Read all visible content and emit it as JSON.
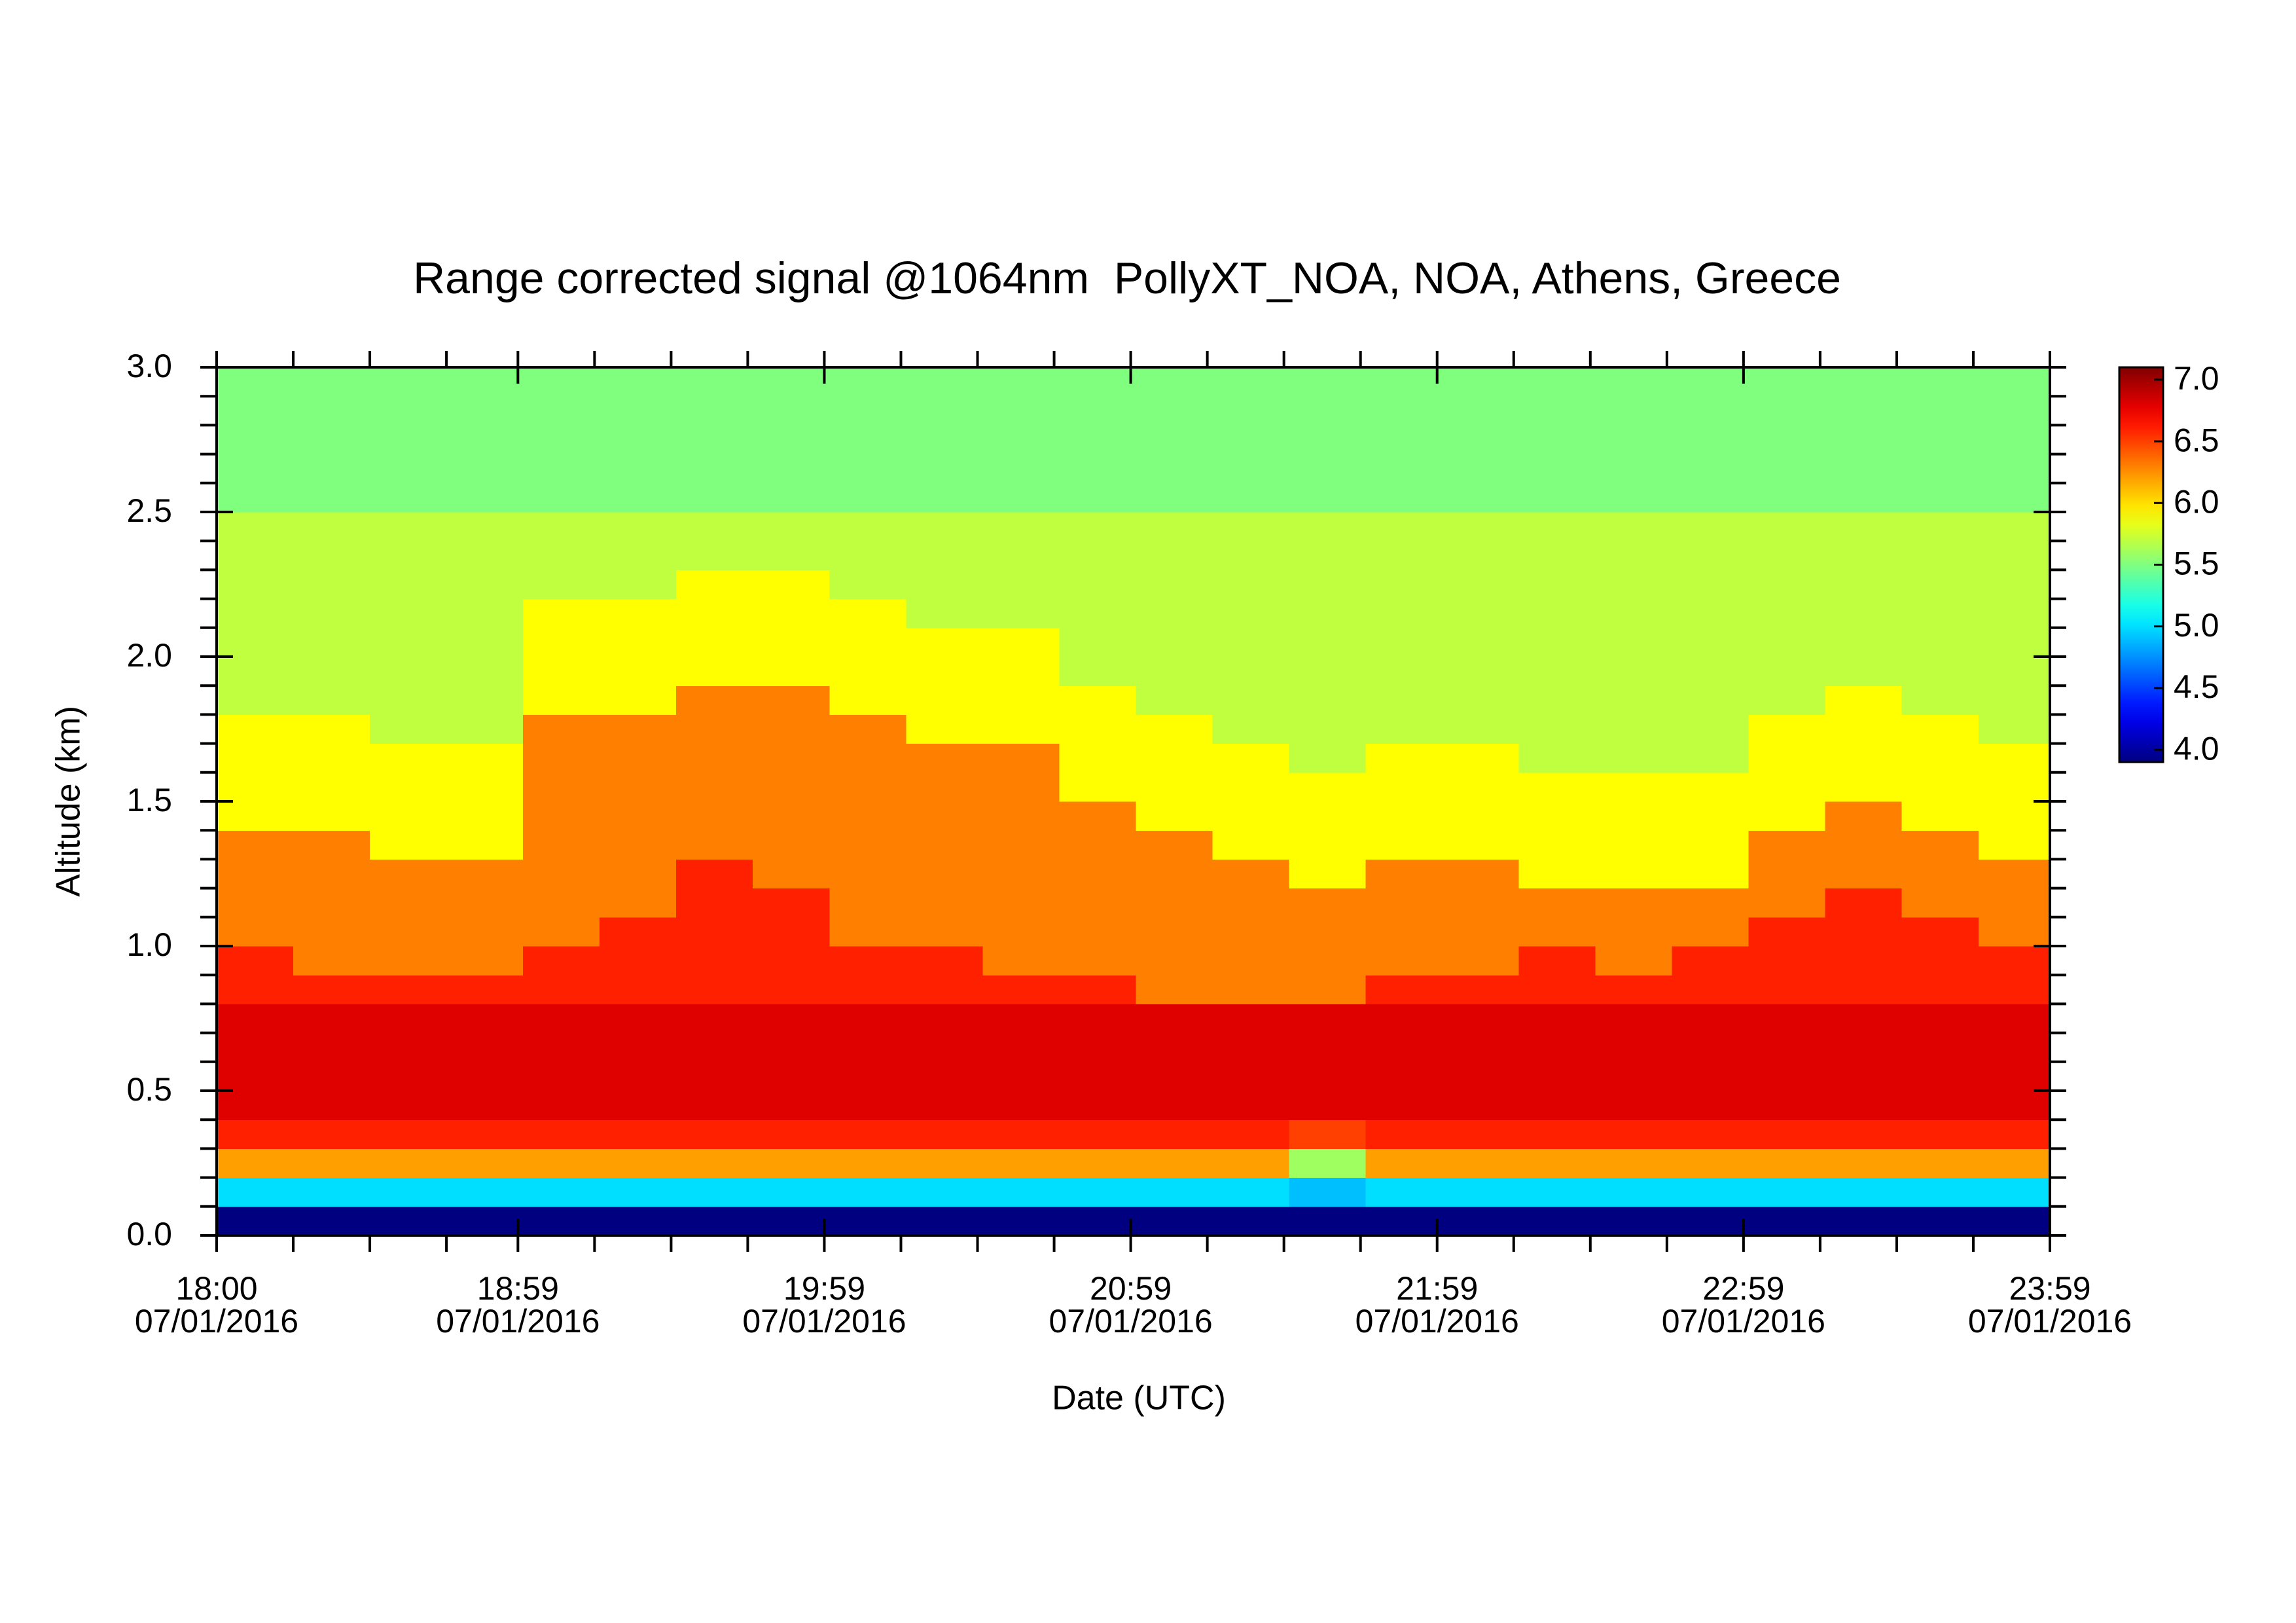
{
  "chart_data": {
    "type": "heatmap",
    "title": "Range corrected signal @1064nm  PollyXT_NOA, NOA, Athens, Greece",
    "xlabel": "Date (UTC)",
    "ylabel": "Altitude (km)",
    "colormap": "jet",
    "xlim": [
      0,
      359
    ],
    "xticks": [
      {
        "value": 0,
        "label": [
          "18:00",
          "07/01/2016"
        ]
      },
      {
        "value": 59,
        "label": [
          "18:59",
          "07/01/2016"
        ]
      },
      {
        "value": 119,
        "label": [
          "19:59",
          "07/01/2016"
        ]
      },
      {
        "value": 179,
        "label": [
          "20:59",
          "07/01/2016"
        ]
      },
      {
        "value": 239,
        "label": [
          "21:59",
          "07/01/2016"
        ]
      },
      {
        "value": 299,
        "label": [
          "22:59",
          "07/01/2016"
        ]
      },
      {
        "value": 359,
        "label": [
          "23:59",
          "07/01/2016"
        ]
      }
    ],
    "xminorticks": [
      15,
      30,
      45,
      74,
      89,
      104,
      134,
      149,
      164,
      194,
      209,
      224,
      254,
      269,
      284,
      314,
      329,
      344
    ],
    "ylim": [
      0,
      3
    ],
    "yticks": [
      {
        "value": 0,
        "label": "0.0"
      },
      0.5,
      {
        "value": 1,
        "label": "1.0"
      },
      1.5,
      {
        "value": 2,
        "label": "2.0"
      },
      2.5,
      {
        "value": 3,
        "label": "3.0"
      }
    ],
    "yminorticks": [
      0.1,
      0.2,
      0.3,
      0.4,
      0.6,
      0.7,
      0.8,
      0.9,
      1.1,
      1.2,
      1.3,
      1.4,
      1.6,
      1.7,
      1.8,
      1.9,
      2.1,
      2.2,
      2.3,
      2.4,
      2.6,
      2.7,
      2.8,
      2.9
    ],
    "clim": [
      3.9,
      7.1
    ],
    "cticks": [
      {
        "value": 4,
        "label": "4.0"
      },
      4.5,
      {
        "value": 5,
        "label": "5.0"
      },
      5.5,
      {
        "value": 6,
        "label": "6.0"
      },
      6.5,
      {
        "value": 7,
        "label": "7.0"
      }
    ],
    "x_edges": [
      0,
      15,
      30,
      45,
      60,
      75,
      90,
      105,
      120,
      135,
      150,
      165,
      180,
      195,
      210,
      225,
      240,
      255,
      270,
      285,
      300,
      315,
      330,
      345,
      359
    ],
    "y_edges": [
      0,
      0.1,
      0.2,
      0.3,
      0.4,
      0.5,
      0.6,
      0.7,
      0.8,
      0.9,
      1,
      1.1,
      1.2,
      1.3,
      1.4,
      1.5,
      1.6,
      1.7,
      1.8,
      1.9,
      2,
      2.1,
      2.2,
      2.3,
      2.4,
      2.5,
      2.6,
      2.7,
      2.8,
      2.9,
      3
    ],
    "z": [
      [
        3.9,
        5.0,
        6.2,
        6.6,
        6.8,
        6.8,
        6.8,
        6.8,
        6.6,
        6.6,
        6.3,
        6.3,
        6.3,
        6.3,
        5.9,
        5.9,
        5.9,
        5.9,
        5.7,
        5.7,
        5.7,
        5.7,
        5.7,
        5.7,
        5.7,
        5.5,
        5.5,
        5.5,
        5.5,
        5.5
      ],
      [
        3.9,
        5.0,
        6.2,
        6.6,
        6.8,
        6.8,
        6.8,
        6.8,
        6.6,
        6.3,
        6.3,
        6.3,
        6.3,
        6.3,
        5.9,
        5.9,
        5.9,
        5.9,
        5.7,
        5.7,
        5.7,
        5.7,
        5.7,
        5.7,
        5.7,
        5.5,
        5.5,
        5.5,
        5.5,
        5.5
      ],
      [
        3.9,
        5.0,
        6.2,
        6.6,
        6.8,
        6.8,
        6.8,
        6.8,
        6.6,
        6.3,
        6.3,
        6.3,
        6.3,
        5.9,
        5.9,
        5.9,
        5.9,
        5.7,
        5.7,
        5.7,
        5.7,
        5.7,
        5.7,
        5.7,
        5.7,
        5.5,
        5.5,
        5.5,
        5.5,
        5.5
      ],
      [
        3.9,
        5.0,
        6.2,
        6.6,
        6.8,
        6.8,
        6.8,
        6.8,
        6.6,
        6.3,
        6.3,
        6.3,
        6.3,
        5.9,
        5.9,
        5.9,
        5.9,
        5.7,
        5.7,
        5.7,
        5.7,
        5.7,
        5.7,
        5.7,
        5.7,
        5.5,
        5.5,
        5.5,
        5.5,
        5.5
      ],
      [
        3.9,
        5.0,
        6.2,
        6.6,
        6.8,
        6.8,
        6.8,
        6.8,
        6.6,
        6.6,
        6.3,
        6.3,
        6.3,
        6.3,
        6.3,
        6.3,
        6.3,
        6.3,
        5.9,
        5.9,
        5.9,
        5.9,
        5.7,
        5.7,
        5.7,
        5.5,
        5.5,
        5.5,
        5.5,
        5.5
      ],
      [
        3.9,
        5.0,
        6.2,
        6.6,
        6.8,
        6.8,
        6.8,
        6.8,
        6.6,
        6.6,
        6.6,
        6.3,
        6.3,
        6.3,
        6.3,
        6.3,
        6.3,
        6.3,
        5.9,
        5.9,
        5.9,
        5.9,
        5.7,
        5.7,
        5.7,
        5.5,
        5.5,
        5.5,
        5.5,
        5.5
      ],
      [
        3.9,
        5.0,
        6.2,
        6.6,
        6.8,
        6.8,
        6.8,
        6.8,
        6.6,
        6.6,
        6.6,
        6.6,
        6.6,
        6.3,
        6.3,
        6.3,
        6.3,
        6.3,
        6.3,
        5.9,
        5.9,
        5.9,
        5.9,
        5.7,
        5.7,
        5.5,
        5.5,
        5.5,
        5.5,
        5.5
      ],
      [
        3.9,
        5.0,
        6.2,
        6.6,
        6.8,
        6.8,
        6.8,
        6.8,
        6.6,
        6.6,
        6.6,
        6.6,
        6.3,
        6.3,
        6.3,
        6.3,
        6.3,
        6.3,
        6.3,
        5.9,
        5.9,
        5.9,
        5.9,
        5.7,
        5.7,
        5.5,
        5.5,
        5.5,
        5.5,
        5.5
      ],
      [
        3.9,
        5.0,
        6.2,
        6.6,
        6.8,
        6.8,
        6.8,
        6.8,
        6.6,
        6.6,
        6.3,
        6.3,
        6.3,
        6.3,
        6.3,
        6.3,
        6.3,
        6.3,
        5.9,
        5.9,
        5.9,
        5.9,
        5.7,
        5.7,
        5.7,
        5.5,
        5.5,
        5.5,
        5.5,
        5.5
      ],
      [
        3.9,
        5.0,
        6.2,
        6.6,
        6.8,
        6.8,
        6.8,
        6.8,
        6.6,
        6.6,
        6.3,
        6.3,
        6.3,
        6.3,
        6.3,
        6.3,
        6.3,
        5.9,
        5.9,
        5.9,
        5.9,
        5.7,
        5.7,
        5.7,
        5.7,
        5.5,
        5.5,
        5.5,
        5.5,
        5.5
      ],
      [
        3.9,
        5.0,
        6.2,
        6.6,
        6.8,
        6.8,
        6.8,
        6.8,
        6.6,
        6.3,
        6.3,
        6.3,
        6.3,
        6.3,
        6.3,
        6.3,
        6.3,
        5.9,
        5.9,
        5.9,
        5.9,
        5.7,
        5.7,
        5.7,
        5.7,
        5.5,
        5.5,
        5.5,
        5.5,
        5.5
      ],
      [
        3.9,
        5.0,
        6.2,
        6.6,
        6.8,
        6.8,
        6.8,
        6.8,
        6.6,
        6.3,
        6.3,
        6.3,
        6.3,
        6.3,
        6.3,
        5.9,
        5.9,
        5.9,
        5.9,
        5.7,
        5.7,
        5.7,
        5.7,
        5.7,
        5.7,
        5.5,
        5.5,
        5.5,
        5.5,
        5.5
      ],
      [
        3.9,
        5.0,
        6.2,
        6.6,
        6.8,
        6.8,
        6.8,
        6.8,
        6.3,
        6.3,
        6.3,
        6.3,
        6.3,
        6.3,
        5.9,
        5.9,
        5.9,
        5.9,
        5.7,
        5.7,
        5.7,
        5.7,
        5.7,
        5.7,
        5.7,
        5.5,
        5.5,
        5.5,
        5.5,
        5.5
      ],
      [
        3.9,
        5.0,
        6.2,
        6.6,
        6.8,
        6.8,
        6.8,
        6.8,
        6.3,
        6.3,
        6.3,
        6.3,
        6.3,
        5.9,
        5.9,
        5.9,
        5.9,
        5.7,
        5.7,
        5.7,
        5.7,
        5.7,
        5.7,
        5.7,
        5.7,
        5.5,
        5.5,
        5.5,
        5.5,
        5.5
      ],
      [
        3.9,
        4.9,
        5.6,
        6.5,
        6.8,
        6.8,
        6.8,
        6.8,
        6.3,
        6.3,
        6.3,
        6.3,
        5.9,
        5.9,
        5.9,
        5.9,
        5.7,
        5.7,
        5.7,
        5.7,
        5.7,
        5.7,
        5.7,
        5.7,
        5.7,
        5.5,
        5.5,
        5.5,
        5.5,
        5.5
      ],
      [
        3.9,
        5.0,
        6.2,
        6.6,
        6.8,
        6.8,
        6.8,
        6.8,
        6.6,
        6.3,
        6.3,
        6.3,
        6.3,
        5.9,
        5.9,
        5.9,
        5.9,
        5.7,
        5.7,
        5.7,
        5.7,
        5.7,
        5.7,
        5.7,
        5.7,
        5.5,
        5.5,
        5.5,
        5.5,
        5.5
      ],
      [
        3.9,
        5.0,
        6.2,
        6.6,
        6.8,
        6.8,
        6.8,
        6.8,
        6.6,
        6.3,
        6.3,
        6.3,
        6.3,
        5.9,
        5.9,
        5.9,
        5.9,
        5.7,
        5.7,
        5.7,
        5.7,
        5.7,
        5.7,
        5.7,
        5.7,
        5.5,
        5.5,
        5.5,
        5.5,
        5.5
      ],
      [
        3.9,
        5.0,
        6.2,
        6.6,
        6.8,
        6.8,
        6.8,
        6.8,
        6.6,
        6.6,
        6.3,
        6.3,
        5.9,
        5.9,
        5.9,
        5.9,
        5.7,
        5.7,
        5.7,
        5.7,
        5.7,
        5.7,
        5.7,
        5.7,
        5.7,
        5.5,
        5.5,
        5.5,
        5.5,
        5.5
      ],
      [
        3.9,
        5.0,
        6.2,
        6.6,
        6.8,
        6.8,
        6.8,
        6.8,
        6.6,
        6.3,
        6.3,
        6.3,
        5.9,
        5.9,
        5.9,
        5.9,
        5.7,
        5.7,
        5.7,
        5.7,
        5.7,
        5.7,
        5.7,
        5.7,
        5.7,
        5.5,
        5.5,
        5.5,
        5.5,
        5.5
      ],
      [
        3.9,
        5.0,
        6.2,
        6.6,
        6.8,
        6.8,
        6.8,
        6.8,
        6.6,
        6.6,
        6.3,
        6.3,
        5.9,
        5.9,
        5.9,
        5.9,
        5.7,
        5.7,
        5.7,
        5.7,
        5.7,
        5.7,
        5.7,
        5.7,
        5.7,
        5.5,
        5.5,
        5.5,
        5.5,
        5.5
      ],
      [
        3.9,
        5.0,
        6.2,
        6.6,
        6.8,
        6.8,
        6.8,
        6.8,
        6.6,
        6.6,
        6.6,
        6.3,
        6.3,
        6.3,
        5.9,
        5.9,
        5.9,
        5.9,
        5.7,
        5.7,
        5.7,
        5.7,
        5.7,
        5.7,
        5.7,
        5.5,
        5.5,
        5.5,
        5.5,
        5.5
      ],
      [
        3.9,
        5.0,
        6.2,
        6.6,
        6.8,
        6.8,
        6.8,
        6.8,
        6.6,
        6.6,
        6.6,
        6.6,
        6.3,
        6.3,
        6.3,
        5.9,
        5.9,
        5.9,
        5.9,
        5.7,
        5.7,
        5.7,
        5.7,
        5.7,
        5.7,
        5.5,
        5.5,
        5.5,
        5.5,
        5.5
      ],
      [
        3.9,
        5.0,
        6.2,
        6.6,
        6.8,
        6.8,
        6.8,
        6.8,
        6.6,
        6.6,
        6.6,
        6.3,
        6.3,
        6.3,
        5.9,
        5.9,
        5.9,
        5.9,
        5.7,
        5.7,
        5.7,
        5.7,
        5.7,
        5.7,
        5.7,
        5.5,
        5.5,
        5.5,
        5.5,
        5.5
      ],
      [
        3.9,
        5.0,
        6.2,
        6.6,
        6.8,
        6.8,
        6.8,
        6.8,
        6.6,
        6.6,
        6.3,
        6.3,
        6.3,
        5.9,
        5.9,
        5.9,
        5.9,
        5.7,
        5.7,
        5.7,
        5.7,
        5.7,
        5.7,
        5.7,
        5.7,
        5.5,
        5.5,
        5.5,
        5.5,
        5.5
      ]
    ]
  }
}
